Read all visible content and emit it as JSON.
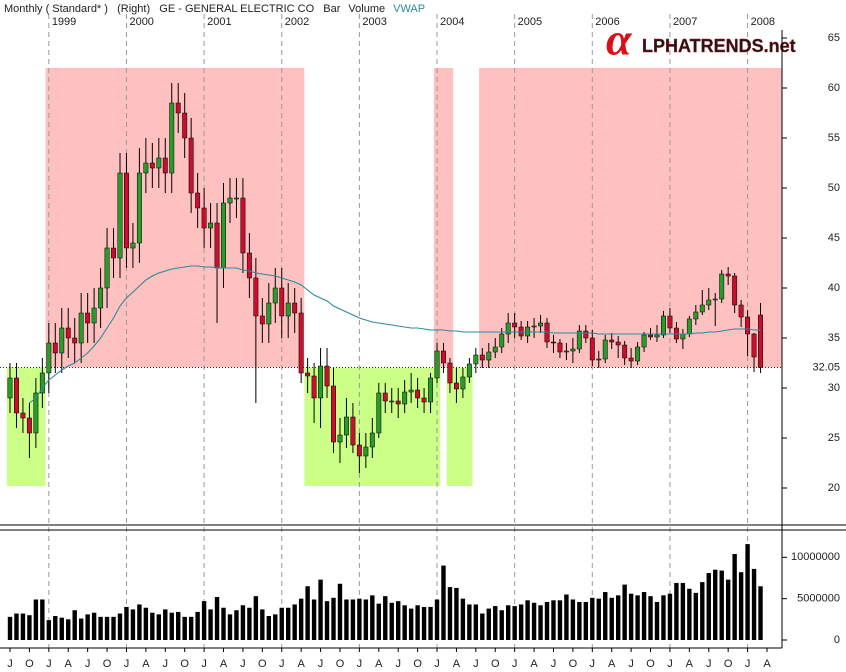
{
  "logo": {
    "symbol": "α",
    "text": "LPHATRENDS.net"
  },
  "chart_data": {
    "type": "candlestick",
    "title": "Monthly ( Standard* )   (Right)   GE - GENERAL ELECTRIC CO   Bar",
    "up_color": "#2a9a2a",
    "down_color": "#c8102e",
    "x": [
      "1998-07",
      "1998-08",
      "1998-09",
      "1998-10",
      "1998-11",
      "1998-12",
      "1999-01",
      "1999-02",
      "1999-03",
      "1999-04",
      "1999-05",
      "1999-06",
      "1999-07",
      "1999-08",
      "1999-09",
      "1999-10",
      "1999-11",
      "1999-12",
      "2000-01",
      "2000-02",
      "2000-03",
      "2000-04",
      "2000-05",
      "2000-06",
      "2000-07",
      "2000-08",
      "2000-09",
      "2000-10",
      "2000-11",
      "2000-12",
      "2001-01",
      "2001-02",
      "2001-03",
      "2001-04",
      "2001-05",
      "2001-06",
      "2001-07",
      "2001-08",
      "2001-09",
      "2001-10",
      "2001-11",
      "2001-12",
      "2002-01",
      "2002-02",
      "2002-03",
      "2002-04",
      "2002-05",
      "2002-06",
      "2002-07",
      "2002-08",
      "2002-09",
      "2002-10",
      "2002-11",
      "2002-12",
      "2003-01",
      "2003-02",
      "2003-03",
      "2003-04",
      "2003-05",
      "2003-06",
      "2003-07",
      "2003-08",
      "2003-09",
      "2003-10",
      "2003-11",
      "2003-12",
      "2004-01",
      "2004-02",
      "2004-03",
      "2004-04",
      "2004-05",
      "2004-06",
      "2004-07",
      "2004-08",
      "2004-09",
      "2004-10",
      "2004-11",
      "2004-12",
      "2005-01",
      "2005-02",
      "2005-03",
      "2005-04",
      "2005-05",
      "2005-06",
      "2005-07",
      "2005-08",
      "2005-09",
      "2005-10",
      "2005-11",
      "2005-12",
      "2006-01",
      "2006-02",
      "2006-03",
      "2006-04",
      "2006-05",
      "2006-06",
      "2006-07",
      "2006-08",
      "2006-09",
      "2006-10",
      "2006-11",
      "2006-12",
      "2007-01",
      "2007-02",
      "2007-03",
      "2007-04",
      "2007-05",
      "2007-06",
      "2007-07",
      "2007-08",
      "2007-09",
      "2007-10",
      "2007-11",
      "2007-12",
      "2008-01",
      "2008-02",
      "2008-03"
    ],
    "open": [
      29,
      31,
      27.5,
      27,
      25.5,
      29.5,
      31.5,
      34.5,
      33.5,
      36,
      35,
      34.5,
      37.5,
      36.5,
      38,
      40,
      44,
      43,
      51.5,
      44,
      44.5,
      51.5,
      52.5,
      52,
      53,
      51.5,
      58.5,
      57.5,
      55,
      49.5,
      48,
      46,
      46.5,
      42,
      48.5,
      49,
      49,
      43.5,
      41,
      37.2,
      36.4,
      38.5,
      40,
      37.2,
      38.5,
      37.5,
      31.5,
      31.2,
      29,
      32.2,
      30.2,
      24.6,
      25.3,
      27.1,
      24.3,
      23.2,
      24.1,
      25.5,
      29.5,
      28.7,
      28.7,
      28.4,
      29.6,
      29.8,
      29,
      28.6,
      31,
      33.7,
      32.5,
      30.5,
      29.9,
      31.1,
      32.4,
      33.3,
      32.8,
      33.6,
      34.1,
      35.4,
      36.5,
      36.1,
      35.2,
      36.1,
      36.2,
      36.5,
      34.6,
      34.5,
      33.6,
      33.7,
      33.9,
      35.7,
      35,
      32.8,
      32.9,
      34.8,
      34.6,
      34.3,
      33,
      32.7,
      34.1,
      35.3,
      35.1,
      35.3,
      37.2,
      36,
      34.9,
      35.4,
      36.9,
      37.6,
      38.3,
      38.8,
      38.9,
      41.4,
      41.2,
      38.3,
      37.1,
      35.4,
      37.3
    ],
    "high": [
      32.5,
      32.5,
      29,
      28.5,
      31,
      33,
      36.5,
      36.5,
      38,
      38,
      37,
      39.5,
      39.5,
      40,
      42,
      46,
      46,
      53.5,
      53.5,
      46.5,
      54,
      55,
      54.5,
      55,
      55,
      60.5,
      60.5,
      59.5,
      57,
      51.5,
      50,
      48.5,
      48.5,
      50.5,
      51,
      51,
      51,
      45.5,
      43,
      39,
      40.5,
      42,
      42,
      40.5,
      40,
      39,
      33,
      32.5,
      34,
      34,
      32,
      27,
      29,
      28.5,
      25.5,
      25.5,
      27,
      30.5,
      30.5,
      30,
      30,
      30.8,
      31.5,
      31,
      30,
      31.5,
      34.5,
      34.5,
      33,
      32,
      32,
      33,
      34,
      34,
      34.5,
      35,
      36,
      37.5,
      37.5,
      36.7,
      36.7,
      37,
      37.3,
      37,
      35.3,
      34.9,
      34.5,
      35,
      36.3,
      36.3,
      35.8,
      33.7,
      35.3,
      35.5,
      35.2,
      34.7,
      34,
      34.6,
      35.6,
      36,
      36.3,
      37.7,
      38,
      36.6,
      35.9,
      37.2,
      38.3,
      39.8,
      40,
      39.5,
      41.8,
      42.1,
      41.5,
      38.8,
      37.8,
      35.5,
      38.5
    ],
    "low": [
      27.5,
      26,
      25.5,
      23,
      24,
      28,
      29.5,
      31.5,
      31.5,
      33,
      32.5,
      32.5,
      34.5,
      34.5,
      36,
      38,
      41,
      41,
      42,
      42,
      42.5,
      49.5,
      50,
      50,
      49.5,
      49.5,
      55.5,
      53,
      47.5,
      46,
      44,
      44,
      36.5,
      40,
      46.5,
      47,
      41.5,
      39,
      28.5,
      34.5,
      34.5,
      36.5,
      35,
      35,
      35.5,
      30.5,
      29.5,
      26.5,
      26,
      29,
      23.5,
      22.5,
      24,
      23.5,
      21.5,
      22,
      23,
      25,
      27.5,
      27.5,
      27,
      27.5,
      28.5,
      28,
      27.5,
      27.5,
      30.5,
      31.5,
      29.5,
      28.5,
      29,
      30.5,
      31.5,
      32,
      32,
      33,
      33.5,
      34.5,
      35,
      34.8,
      34.5,
      35,
      35.5,
      34,
      33.5,
      33,
      32.8,
      32.5,
      33.5,
      34.5,
      32.2,
      32,
      32.5,
      33.9,
      33,
      32.3,
      32,
      32.3,
      33.6,
      34.8,
      34.6,
      35,
      35.5,
      34.5,
      33.9,
      35.1,
      36.3,
      37.3,
      37.8,
      36.2,
      38.5,
      40.3,
      37.5,
      36.1,
      33.2,
      31.6,
      31.5
    ],
    "close": [
      31,
      27.5,
      27,
      25.5,
      29.5,
      31.5,
      34.5,
      33.5,
      36,
      35,
      34.5,
      37.5,
      36.5,
      38,
      40,
      44,
      43,
      51.5,
      44,
      44.5,
      51.5,
      52.5,
      52,
      53,
      51.5,
      58.5,
      57.5,
      55,
      49.5,
      48,
      46,
      46.5,
      42,
      48.5,
      49,
      49,
      43.5,
      41,
      37.2,
      36.4,
      38.5,
      40,
      37.2,
      38.5,
      37.5,
      31.5,
      31.2,
      29,
      32.2,
      30.2,
      24.6,
      25.3,
      27.1,
      24.3,
      23.2,
      24.1,
      25.5,
      29.5,
      28.7,
      28.7,
      28.4,
      29.6,
      29.8,
      29,
      28.6,
      31,
      33.7,
      32.5,
      30.5,
      29.9,
      31.1,
      32.4,
      33.3,
      32.8,
      33.6,
      34.1,
      35.4,
      36.5,
      36.1,
      35.2,
      36.1,
      36.2,
      36.5,
      34.6,
      34.5,
      33.6,
      33.7,
      33.9,
      35.7,
      35,
      32.8,
      32.9,
      34.8,
      34.6,
      34.3,
      33,
      32.7,
      34.1,
      35.3,
      35.1,
      35.3,
      37.2,
      36,
      34.9,
      35.4,
      36.9,
      37.6,
      38.3,
      38.8,
      38.9,
      41.4,
      41.2,
      38.3,
      37.1,
      35.4,
      33.1,
      32.05
    ],
    "series": [
      {
        "name": "VWAP",
        "color": "#2a8a9a",
        "values": [
          null,
          null,
          null,
          28.5,
          29,
          30,
          30.8,
          31.3,
          31.8,
          32.2,
          32.5,
          33,
          33.5,
          34.2,
          35,
          36,
          37,
          38.2,
          39,
          39.6,
          40.2,
          40.8,
          41.2,
          41.5,
          41.7,
          41.9,
          42,
          42.1,
          42.2,
          42.2,
          42.1,
          42.1,
          42,
          42,
          42,
          42,
          41.8,
          41.7,
          41.5,
          41.4,
          41.3,
          41.2,
          41,
          40.8,
          40.6,
          40.3,
          39.8,
          39.3,
          39,
          38.7,
          38.2,
          37.9,
          37.6,
          37.3,
          37,
          36.8,
          36.6,
          36.5,
          36.4,
          36.3,
          36.2,
          36.1,
          36,
          36,
          35.9,
          35.8,
          35.8,
          35.8,
          35.7,
          35.7,
          35.6,
          35.6,
          35.6,
          35.6,
          35.6,
          35.6,
          35.6,
          35.6,
          35.6,
          35.6,
          35.6,
          35.6,
          35.6,
          35.6,
          35.5,
          35.5,
          35.5,
          35.5,
          35.5,
          35.5,
          35.5,
          35.4,
          35.4,
          35.4,
          35.4,
          35.4,
          35.4,
          35.4,
          35.4,
          35.4,
          35.4,
          35.4,
          35.4,
          35.4,
          35.4,
          35.4,
          35.5,
          35.5,
          35.6,
          35.6,
          35.7,
          35.8,
          35.9,
          35.9,
          35.9,
          35.8,
          35.8
        ]
      }
    ],
    "ylim": [
      16.8,
      65.8
    ],
    "yticks": [
      20,
      25,
      30,
      35,
      40,
      45,
      50,
      55,
      60,
      65
    ],
    "last_price": 32.05,
    "zones": [
      {
        "from": "1999-01",
        "to": "2002-04",
        "y": [
          32.05,
          62
        ],
        "color": "#ffc0c0"
      },
      {
        "from": "2004-01",
        "to": "2004-03",
        "y": [
          32.05,
          62
        ],
        "color": "#ffc0c0"
      },
      {
        "from": "2004-08",
        "to": "2008-03",
        "y": [
          32.05,
          62
        ],
        "color": "#ffc0c0"
      },
      {
        "from": "1998-07",
        "to": "1998-12",
        "y": [
          20.2,
          32.05
        ],
        "color": "#ccff88"
      },
      {
        "from": "2002-05",
        "to": "2004-01",
        "y": [
          20.2,
          32.05
        ],
        "color": "#ccff88"
      },
      {
        "from": "2004-03",
        "to": "2004-06",
        "y": [
          20.2,
          32.05
        ],
        "color": "#ccff88"
      }
    ],
    "x2ticks": [
      {
        "value": "1999-01",
        "label": "1999"
      },
      {
        "value": "2000-01",
        "label": "2000"
      },
      {
        "value": "2001-01",
        "label": "2001"
      },
      {
        "value": "2002-01",
        "label": "2002"
      },
      {
        "value": "2003-01",
        "label": "2003"
      },
      {
        "value": "2004-01",
        "label": "2004"
      },
      {
        "value": "2005-01",
        "label": "2005"
      },
      {
        "value": "2006-01",
        "label": "2006"
      },
      {
        "value": "2007-01",
        "label": "2007"
      },
      {
        "value": "2008-01",
        "label": "2008"
      }
    ],
    "xticks": [
      {
        "value": "1998-07",
        "label": "J"
      },
      {
        "value": "1998-10",
        "label": "O"
      },
      {
        "value": "1999-01",
        "label": "J"
      },
      {
        "value": "1999-04",
        "label": "A"
      },
      {
        "value": "1999-07",
        "label": "J"
      },
      {
        "value": "1999-10",
        "label": "O"
      },
      {
        "value": "2000-01",
        "label": "J"
      },
      {
        "value": "2000-04",
        "label": "A"
      },
      {
        "value": "2000-07",
        "label": "J"
      },
      {
        "value": "2000-10",
        "label": "O"
      },
      {
        "value": "2001-01",
        "label": "J"
      },
      {
        "value": "2001-04",
        "label": "A"
      },
      {
        "value": "2001-07",
        "label": "J"
      },
      {
        "value": "2001-10",
        "label": "O"
      },
      {
        "value": "2002-01",
        "label": "J"
      },
      {
        "value": "2002-04",
        "label": "A"
      },
      {
        "value": "2002-07",
        "label": "J"
      },
      {
        "value": "2002-10",
        "label": "O"
      },
      {
        "value": "2003-01",
        "label": "J"
      },
      {
        "value": "2003-04",
        "label": "A"
      },
      {
        "value": "2003-07",
        "label": "J"
      },
      {
        "value": "2003-10",
        "label": "O"
      },
      {
        "value": "2004-01",
        "label": "J"
      },
      {
        "value": "2004-04",
        "label": "A"
      },
      {
        "value": "2004-07",
        "label": "J"
      },
      {
        "value": "2004-10",
        "label": "O"
      },
      {
        "value": "2005-01",
        "label": "J"
      },
      {
        "value": "2005-04",
        "label": "A"
      },
      {
        "value": "2005-07",
        "label": "J"
      },
      {
        "value": "2005-10",
        "label": "O"
      },
      {
        "value": "2006-01",
        "label": "J"
      },
      {
        "value": "2006-04",
        "label": "A"
      },
      {
        "value": "2006-07",
        "label": "J"
      },
      {
        "value": "2006-10",
        "label": "O"
      },
      {
        "value": "2007-01",
        "label": "J"
      },
      {
        "value": "2007-04",
        "label": "A"
      },
      {
        "value": "2007-07",
        "label": "J"
      },
      {
        "value": "2007-10",
        "label": "O"
      },
      {
        "value": "2008-01",
        "label": "J"
      },
      {
        "value": "2008-04",
        "label": "A"
      }
    ],
    "volume": {
      "name": "Volume",
      "color": "#000000",
      "values": [
        2800000,
        3200000,
        3200000,
        3000000,
        4900000,
        4900000,
        2400000,
        2900000,
        2700000,
        2500000,
        3600000,
        2600000,
        3100000,
        3300000,
        2800000,
        2800000,
        2800000,
        3200000,
        4000000,
        3700000,
        4300000,
        3900000,
        3300000,
        3100000,
        3700000,
        3300000,
        3400000,
        2800000,
        2800000,
        3400000,
        4700000,
        3700000,
        5200000,
        3900000,
        3100000,
        3600000,
        4200000,
        3900000,
        5300000,
        3700000,
        2900000,
        3100000,
        3900000,
        3900000,
        4300000,
        5000000,
        6500000,
        4900000,
        7300000,
        4700000,
        5100000,
        6800000,
        4900000,
        4900000,
        5000000,
        4900000,
        5400000,
        4400000,
        5300000,
        4500000,
        4700000,
        4200000,
        3800000,
        4200000,
        4000000,
        4000000,
        4900000,
        9000000,
        6400000,
        6300000,
        5000000,
        4300000,
        4300000,
        3200000,
        3800000,
        4100000,
        3600000,
        4200000,
        4100000,
        4300000,
        4800000,
        4500000,
        4200000,
        4600000,
        4800000,
        4800000,
        5500000,
        4900000,
        4600000,
        4600000,
        5100000,
        5000000,
        5800000,
        5100000,
        5400000,
        6700000,
        5600000,
        5400000,
        5800000,
        5300000,
        4600000,
        5400000,
        5600000,
        6900000,
        6900000,
        6200000,
        5700000,
        7000000,
        8100000,
        8500000,
        8400000,
        7300000,
        10400000,
        8200000,
        11600000,
        8600000,
        6500000
      ],
      "ylim": [
        0,
        12700000
      ],
      "yticks": [
        0,
        5000000,
        10000000
      ]
    }
  }
}
